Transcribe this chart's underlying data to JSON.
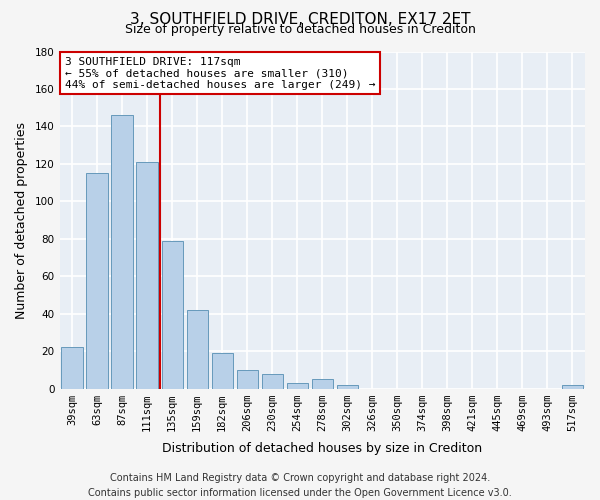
{
  "title": "3, SOUTHFIELD DRIVE, CREDITON, EX17 2ET",
  "subtitle": "Size of property relative to detached houses in Crediton",
  "xlabel": "Distribution of detached houses by size in Crediton",
  "ylabel": "Number of detached properties",
  "bar_labels": [
    "39sqm",
    "63sqm",
    "87sqm",
    "111sqm",
    "135sqm",
    "159sqm",
    "182sqm",
    "206sqm",
    "230sqm",
    "254sqm",
    "278sqm",
    "302sqm",
    "326sqm",
    "350sqm",
    "374sqm",
    "398sqm",
    "421sqm",
    "445sqm",
    "469sqm",
    "493sqm",
    "517sqm"
  ],
  "bar_values": [
    22,
    115,
    146,
    121,
    79,
    42,
    19,
    10,
    8,
    3,
    5,
    2,
    0,
    0,
    0,
    0,
    0,
    0,
    0,
    0,
    2
  ],
  "bar_color": "#b8d0e8",
  "bar_edge_color": "#6699bb",
  "marker_index": 3,
  "marker_line_color": "#cc0000",
  "annotation_line1": "3 SOUTHFIELD DRIVE: 117sqm",
  "annotation_line2": "← 55% of detached houses are smaller (310)",
  "annotation_line3": "44% of semi-detached houses are larger (249) →",
  "annotation_box_facecolor": "#ffffff",
  "annotation_box_edgecolor": "#cc0000",
  "ylim": [
    0,
    180
  ],
  "yticks": [
    0,
    20,
    40,
    60,
    80,
    100,
    120,
    140,
    160,
    180
  ],
  "footer_line1": "Contains HM Land Registry data © Crown copyright and database right 2024.",
  "footer_line2": "Contains public sector information licensed under the Open Government Licence v3.0.",
  "figure_bg_color": "#f5f5f5",
  "plot_bg_color": "#e8eef5",
  "grid_color": "#ffffff",
  "title_fontsize": 11,
  "subtitle_fontsize": 9,
  "axis_label_fontsize": 9,
  "tick_fontsize": 7.5,
  "annotation_fontsize": 8,
  "footer_fontsize": 7
}
